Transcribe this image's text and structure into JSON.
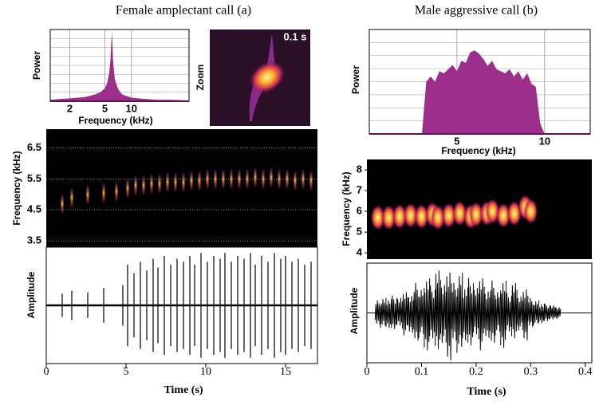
{
  "chart_data": [
    {
      "type": "spectrum",
      "title": "Female amplectant call (a)",
      "xlabel": "Frequency (kHz)",
      "ylabel": "Power",
      "log_x": true,
      "grid": true,
      "color": "#9c2f8c",
      "xlim": [
        1.2,
        45
      ],
      "ylim": [
        0,
        1
      ],
      "xticks": [
        2,
        5,
        10
      ],
      "x": [
        1.2,
        1.5,
        2,
        2.5,
        3,
        3.5,
        4,
        4.5,
        5,
        5.3,
        5.6,
        5.8,
        6,
        6.2,
        6.5,
        7,
        7.5,
        8,
        9,
        10,
        12,
        15,
        20,
        30,
        45
      ],
      "values": [
        0.02,
        0.03,
        0.04,
        0.05,
        0.06,
        0.08,
        0.1,
        0.13,
        0.18,
        0.25,
        0.4,
        0.6,
        0.98,
        0.55,
        0.3,
        0.18,
        0.12,
        0.09,
        0.07,
        0.05,
        0.04,
        0.03,
        0.02,
        0.02,
        0.01
      ]
    },
    {
      "type": "image",
      "ylabel": "Zoom",
      "annotation": "0.1 s"
    },
    {
      "type": "spectrogram",
      "ylabel": "Frequency (kHz)",
      "grid": true,
      "xlim": [
        0,
        17
      ],
      "ylim": [
        3.3,
        7.1
      ],
      "yticks": [
        3.5,
        4.5,
        5.5,
        6.5
      ],
      "x": [
        1.0,
        1.6,
        2.6,
        3.6,
        4.4,
        5.1,
        5.6,
        6.1,
        6.6,
        7.1,
        7.6,
        8.1,
        8.6,
        9.1,
        9.6,
        10.1,
        10.6,
        11.1,
        11.6,
        12.1,
        12.6,
        13.1,
        13.6,
        14.1,
        14.6,
        15.1,
        15.6,
        16.1,
        16.6
      ],
      "values": [
        4.7,
        4.9,
        5.0,
        5.05,
        5.1,
        5.2,
        5.3,
        5.3,
        5.35,
        5.35,
        5.4,
        5.4,
        5.4,
        5.45,
        5.45,
        5.5,
        5.5,
        5.5,
        5.5,
        5.5,
        5.5,
        5.55,
        5.5,
        5.55,
        5.5,
        5.5,
        5.45,
        5.5,
        5.45
      ]
    },
    {
      "type": "waveform",
      "style": "pulse",
      "ylabel": "Amplitude",
      "xlabel": "Time (s)",
      "xlim": [
        0,
        17
      ],
      "ylim": [
        -1,
        1
      ],
      "xticks": [
        0,
        5,
        10,
        15
      ],
      "x": [
        1.0,
        1.6,
        2.6,
        3.6,
        4.8,
        5.1,
        5.5,
        5.9,
        6.3,
        6.7,
        7.0,
        7.4,
        7.8,
        8.2,
        8.6,
        9.0,
        9.3,
        9.7,
        10.1,
        10.5,
        10.9,
        11.2,
        11.6,
        12.0,
        12.4,
        12.8,
        13.1,
        13.5,
        13.9,
        14.3,
        14.7,
        15.0,
        15.4,
        15.8,
        16.2,
        16.6
      ],
      "values": [
        0.2,
        0.25,
        0.22,
        0.3,
        0.35,
        0.7,
        0.55,
        0.75,
        0.6,
        0.8,
        0.65,
        0.85,
        0.7,
        0.8,
        0.75,
        0.85,
        0.7,
        0.9,
        0.75,
        0.85,
        0.8,
        0.9,
        0.75,
        0.85,
        0.8,
        0.9,
        0.7,
        0.85,
        0.75,
        0.9,
        0.8,
        0.85,
        0.75,
        0.8,
        0.7,
        0.75
      ]
    },
    {
      "type": "spectrum",
      "title": "Male aggressive call (b)",
      "xlabel": "Frequency (kHz)",
      "ylabel": "Power",
      "log_x": false,
      "grid": true,
      "color": "#9c2f8c",
      "xlim": [
        0,
        12.6
      ],
      "ylim": [
        0,
        1
      ],
      "xticks": [
        5,
        10
      ],
      "x": [
        3,
        3.25,
        3.5,
        3.75,
        4,
        4.25,
        4.5,
        4.75,
        5,
        5.25,
        5.5,
        5.75,
        6,
        6.25,
        6.5,
        6.75,
        7,
        7.25,
        7.5,
        7.75,
        8,
        8.25,
        8.5,
        8.75,
        9,
        9.25,
        9.5,
        9.75,
        10
      ],
      "values": [
        0,
        0.5,
        0.55,
        0.5,
        0.6,
        0.58,
        0.62,
        0.66,
        0.6,
        0.7,
        0.68,
        0.78,
        0.8,
        0.77,
        0.72,
        0.65,
        0.7,
        0.62,
        0.6,
        0.58,
        0.62,
        0.55,
        0.6,
        0.52,
        0.58,
        0.48,
        0.45,
        0.1,
        0
      ]
    },
    {
      "type": "spectrogram",
      "ylabel": "Frequency (kHz)",
      "grid": false,
      "xlim": [
        0,
        0.412
      ],
      "ylim": [
        3.7,
        8.5
      ],
      "yticks": [
        4,
        5,
        6,
        7,
        8
      ],
      "x": [
        0.02,
        0.04,
        0.06,
        0.08,
        0.1,
        0.12,
        0.13,
        0.15,
        0.17,
        0.19,
        0.2,
        0.22,
        0.23,
        0.25,
        0.27,
        0.29,
        0.3
      ],
      "values": [
        5.7,
        5.7,
        5.75,
        5.8,
        5.75,
        5.85,
        5.7,
        5.8,
        5.9,
        5.75,
        5.85,
        5.9,
        6.0,
        5.8,
        5.9,
        6.2,
        6.0
      ]
    },
    {
      "type": "waveform",
      "style": "burst",
      "ylabel": "Amplitude",
      "xlabel": "Time (s)",
      "xlim": [
        0,
        0.412
      ],
      "ylim": [
        -1,
        1
      ],
      "xticks": [
        0,
        0.1,
        0.2,
        0.3,
        0.4
      ],
      "x": [
        0.02,
        0.03,
        0.04,
        0.05,
        0.06,
        0.07,
        0.08,
        0.09,
        0.1,
        0.11,
        0.12,
        0.13,
        0.14,
        0.15,
        0.16,
        0.17,
        0.18,
        0.19,
        0.2,
        0.21,
        0.22,
        0.23,
        0.24,
        0.25,
        0.26,
        0.27,
        0.28,
        0.29,
        0.3,
        0.31,
        0.32,
        0.33,
        0.34,
        0.35
      ],
      "values": [
        0.25,
        0.3,
        0.3,
        0.35,
        0.3,
        0.45,
        0.4,
        0.6,
        0.5,
        0.75,
        0.55,
        0.85,
        0.6,
        0.95,
        0.6,
        0.8,
        0.55,
        0.7,
        0.5,
        0.75,
        0.5,
        0.65,
        0.45,
        0.7,
        0.4,
        0.6,
        0.35,
        0.55,
        0.3,
        0.25,
        0.2,
        0.18,
        0.15,
        0.12
      ]
    }
  ]
}
